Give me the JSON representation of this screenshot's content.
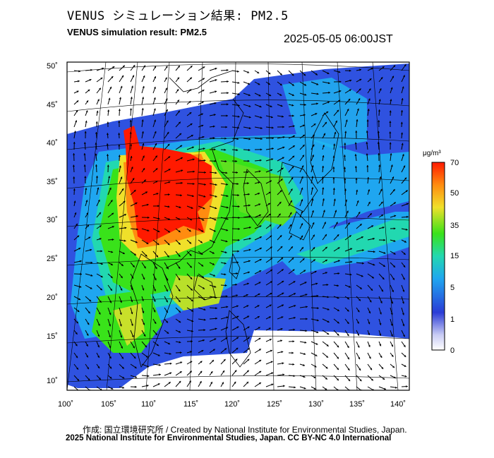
{
  "header": {
    "title_ja": "VENUS シミュレーション結果: PM2.5",
    "title_en": "VENUS simulation result: PM2.5",
    "timestamp": "2025-05-05 06:00JST"
  },
  "map": {
    "lat_labels": [
      "50˚",
      "45˚",
      "40˚",
      "35˚",
      "30˚",
      "25˚",
      "20˚",
      "15˚",
      "10˚"
    ],
    "lon_labels": [
      "100˚",
      "105˚",
      "110˚",
      "115˚",
      "120˚",
      "125˚",
      "130˚",
      "135˚",
      "140˚"
    ],
    "lat_values": [
      50,
      45,
      40,
      35,
      30,
      25,
      20,
      15,
      10
    ],
    "lon_values": [
      100,
      105,
      110,
      115,
      120,
      125,
      130,
      135,
      140
    ]
  },
  "colorbar": {
    "unit": "μg/m³",
    "ticks": [
      "70",
      "50",
      "35",
      "15",
      "5",
      "1",
      "0"
    ],
    "colors": [
      "#ffffff",
      "#2b3cd6",
      "#1fa6f0",
      "#22d8b0",
      "#39e21a",
      "#f0e02a",
      "#ff8c10",
      "#ff1a00"
    ]
  },
  "footer": {
    "credit_line_1": "作成: 国立環境研究所 / Created by National Institute for Environmental Studies, Japan.",
    "credit_line_2": "2025 National Institute for Environmental Studies, Japan. CC BY-NC 4.0 International"
  }
}
